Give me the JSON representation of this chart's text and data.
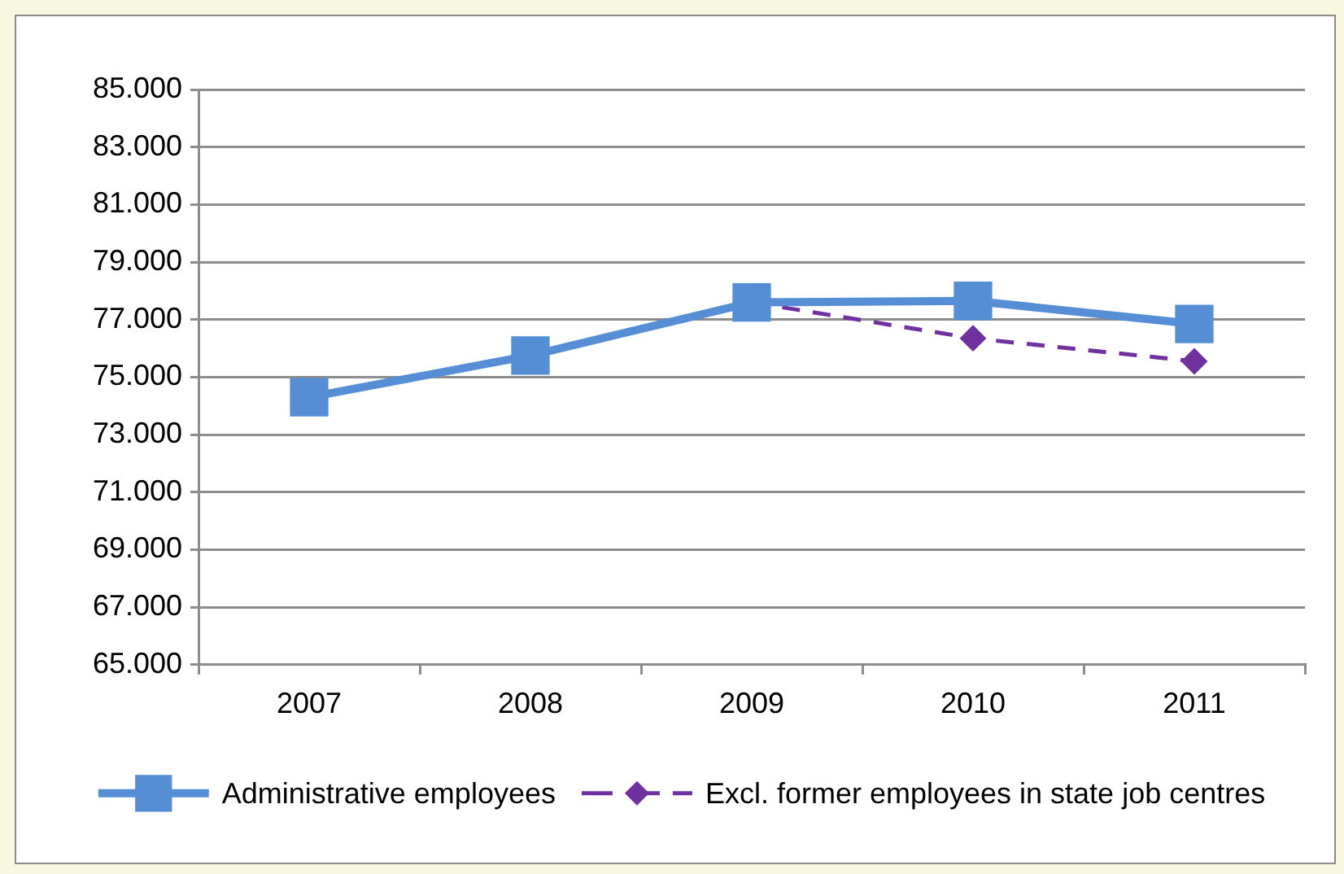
{
  "chart_data": {
    "type": "line",
    "categories": [
      "2007",
      "2008",
      "2009",
      "2010",
      "2011"
    ],
    "series": [
      {
        "name": "Administrative employees",
        "color": "#558ed5",
        "values": [
          74300,
          75750,
          77600,
          77650,
          76850
        ],
        "marker": "square",
        "line_style": "solid"
      },
      {
        "name": "Excl. former employees in state job centres",
        "color": "#7030a0",
        "values": [
          null,
          null,
          77600,
          76350,
          75550
        ],
        "marker": "diamond",
        "line_style": "dashed"
      }
    ],
    "ylim": [
      65000,
      85000
    ],
    "yticks": [
      {
        "value": 65000,
        "label": "65.000"
      },
      {
        "value": 67000,
        "label": "67.000"
      },
      {
        "value": 69000,
        "label": "69.000"
      },
      {
        "value": 71000,
        "label": "71.000"
      },
      {
        "value": 73000,
        "label": "73.000"
      },
      {
        "value": 75000,
        "label": "75.000"
      },
      {
        "value": 77000,
        "label": "77.000"
      },
      {
        "value": 79000,
        "label": "79.000"
      },
      {
        "value": 81000,
        "label": "81.000"
      },
      {
        "value": 83000,
        "label": "83.000"
      },
      {
        "value": 85000,
        "label": "85.000"
      }
    ],
    "grid": "y",
    "legend": "bottom"
  }
}
